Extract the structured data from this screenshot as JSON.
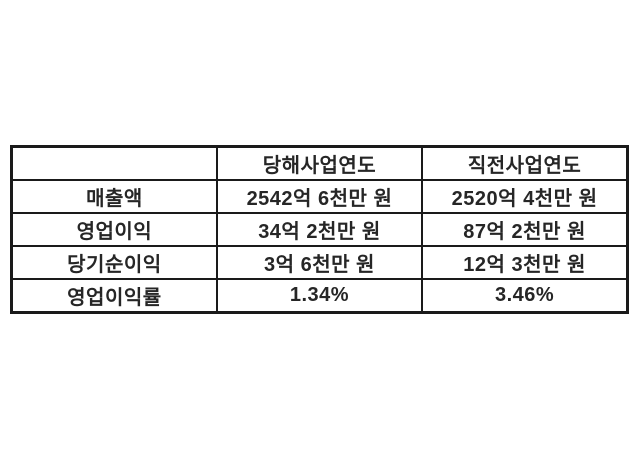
{
  "table": {
    "columns": [
      "",
      "당해사업연도",
      "직전사업연도"
    ],
    "rows": [
      {
        "label": "매출액",
        "current": "2542억 6천만 원",
        "previous": "2520억 4천만 원"
      },
      {
        "label": "영업이익",
        "current": "34억 2천만 원",
        "previous": "87억 2천만 원"
      },
      {
        "label": "당기순이익",
        "current": "3억 6천만 원",
        "previous": "12억 3천만 원"
      },
      {
        "label": "영업이익률",
        "current": "1.34%",
        "previous": "3.46%"
      }
    ]
  },
  "chart_data": {
    "type": "table",
    "title": "",
    "columns": [
      "",
      "당해사업연도",
      "직전사업연도"
    ],
    "rows": [
      [
        "매출액",
        "2542억 6천만 원",
        "2520억 4천만 원"
      ],
      [
        "영업이익",
        "34억 2천만 원",
        "87억 2천만 원"
      ],
      [
        "당기순이익",
        "3억 6천만 원",
        "12억 3천만 원"
      ],
      [
        "영업이익률",
        "1.34%",
        "3.46%"
      ]
    ],
    "operating_margin_percent": {
      "current_year": 1.34,
      "previous_year": 3.46
    }
  },
  "colors": {
    "background": "#ffffff",
    "border": "#1a1a1a",
    "text": "#262626"
  }
}
